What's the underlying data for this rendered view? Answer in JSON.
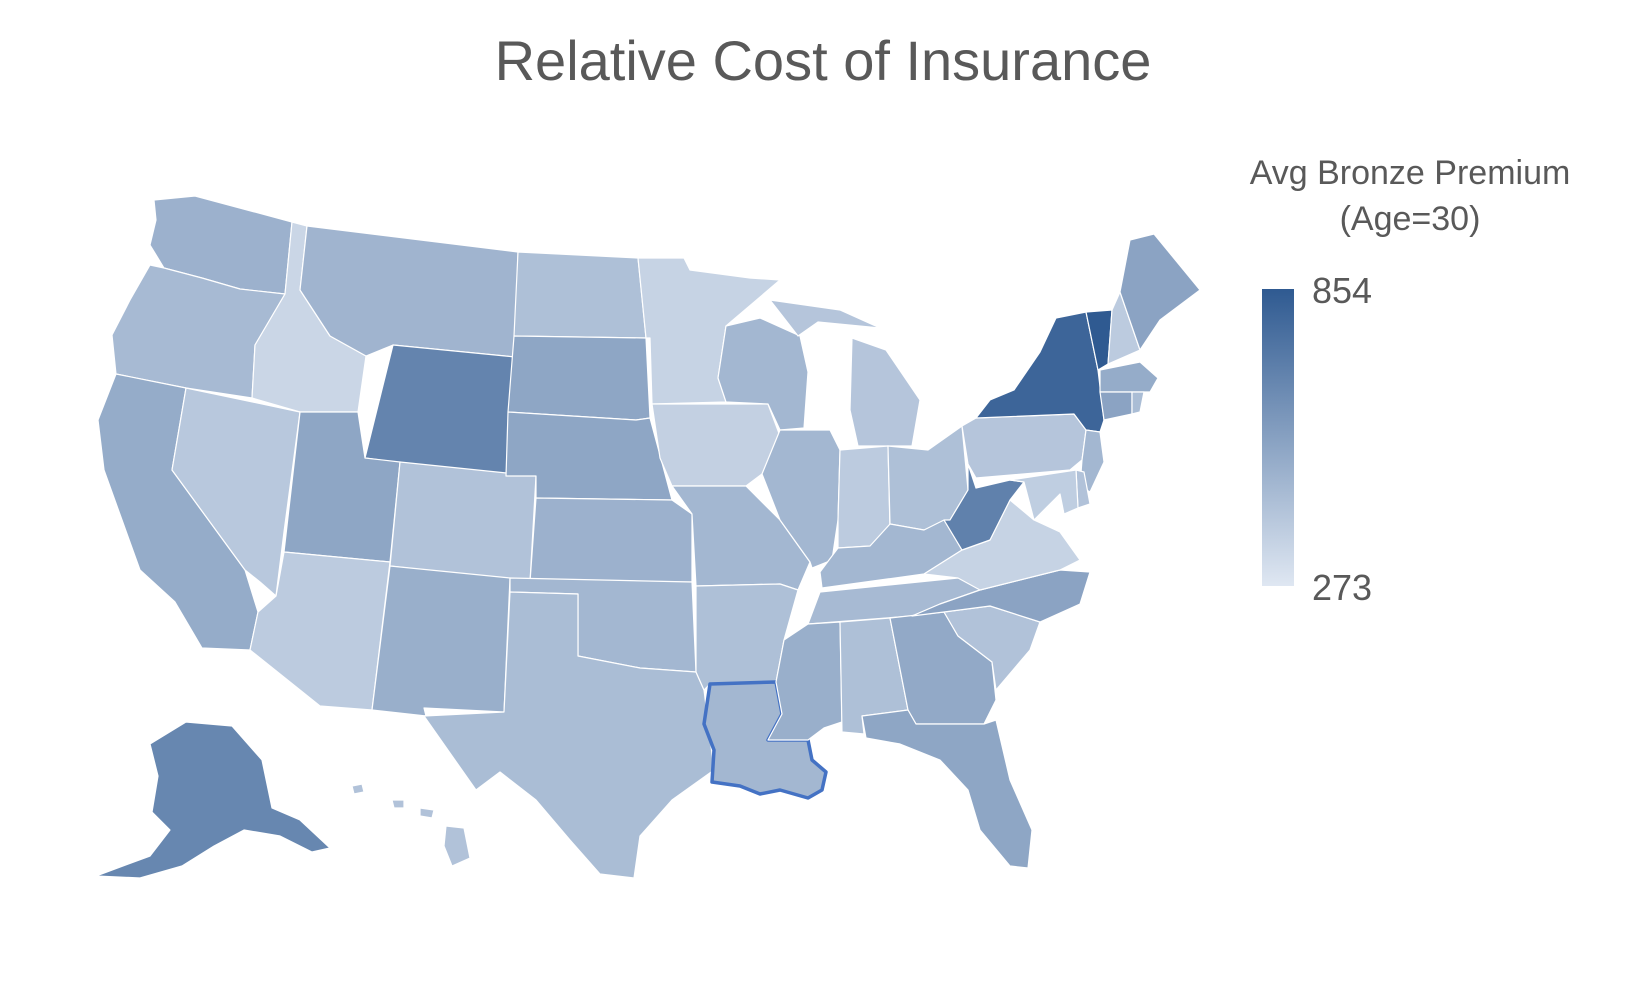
{
  "title": "Relative Cost of Insurance",
  "legend": {
    "title_line1": "Avg Bronze Premium",
    "title_line2": "(Age=30)",
    "max": "854",
    "min": "273",
    "color_max": "#2f5a91",
    "color_min": "#dfe7f2"
  },
  "highlight_color": "#4472c4",
  "map_data": {
    "type": "choropleth",
    "region": "United States",
    "highlighted_state": "LA",
    "states": [
      {
        "id": "WA",
        "level": 0.38
      },
      {
        "id": "OR",
        "level": 0.32
      },
      {
        "id": "CA",
        "level": 0.42
      },
      {
        "id": "ID",
        "level": 0.12
      },
      {
        "id": "NV",
        "level": 0.22
      },
      {
        "id": "MT",
        "level": 0.36
      },
      {
        "id": "WY",
        "level": 0.7
      },
      {
        "id": "UT",
        "level": 0.46
      },
      {
        "id": "AZ",
        "level": 0.2
      },
      {
        "id": "CO",
        "level": 0.26
      },
      {
        "id": "NM",
        "level": 0.4
      },
      {
        "id": "ND",
        "level": 0.28
      },
      {
        "id": "SD",
        "level": 0.46
      },
      {
        "id": "NE",
        "level": 0.46
      },
      {
        "id": "KS",
        "level": 0.38
      },
      {
        "id": "OK",
        "level": 0.34
      },
      {
        "id": "TX",
        "level": 0.3
      },
      {
        "id": "MN",
        "level": 0.14
      },
      {
        "id": "IA",
        "level": 0.16
      },
      {
        "id": "MO",
        "level": 0.34
      },
      {
        "id": "AR",
        "level": 0.28
      },
      {
        "id": "LA",
        "level": 0.34
      },
      {
        "id": "WI",
        "level": 0.34
      },
      {
        "id": "IL",
        "level": 0.34
      },
      {
        "id": "MI",
        "level": 0.24
      },
      {
        "id": "IN",
        "level": 0.2
      },
      {
        "id": "OH",
        "level": 0.28
      },
      {
        "id": "KY",
        "level": 0.34
      },
      {
        "id": "TN",
        "level": 0.32
      },
      {
        "id": "MS",
        "level": 0.4
      },
      {
        "id": "AL",
        "level": 0.28
      },
      {
        "id": "GA",
        "level": 0.44
      },
      {
        "id": "FL",
        "level": 0.46
      },
      {
        "id": "SC",
        "level": 0.26
      },
      {
        "id": "NC",
        "level": 0.48
      },
      {
        "id": "VA",
        "level": 0.14
      },
      {
        "id": "WV",
        "level": 0.72
      },
      {
        "id": "PA",
        "level": 0.24
      },
      {
        "id": "NY",
        "level": 0.92
      },
      {
        "id": "VT",
        "level": 1.0
      },
      {
        "id": "NH",
        "level": 0.2
      },
      {
        "id": "ME",
        "level": 0.48
      },
      {
        "id": "MA",
        "level": 0.42
      },
      {
        "id": "CT",
        "level": 0.48
      },
      {
        "id": "RI",
        "level": 0.3
      },
      {
        "id": "NJ",
        "level": 0.34
      },
      {
        "id": "DE",
        "level": 0.26
      },
      {
        "id": "MD",
        "level": 0.18
      },
      {
        "id": "AK",
        "level": 0.68
      },
      {
        "id": "HI",
        "level": 0.26
      }
    ]
  }
}
